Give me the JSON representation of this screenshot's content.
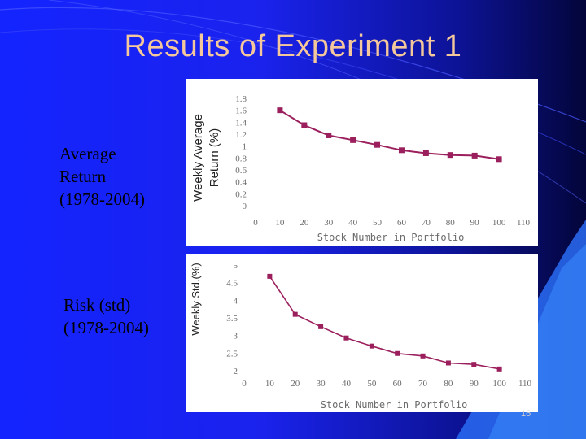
{
  "slide": {
    "title": "Results of Experiment 1",
    "page_number": "16"
  },
  "labels": {
    "return_lines": [
      "Average",
      "Return",
      "(1978-2004)"
    ],
    "risk_lines": [
      "Risk (std)",
      "(1978-2004)"
    ]
  },
  "colors": {
    "series": "#9b1f5c",
    "title": "#f4c89a",
    "background_left": "#1424ff",
    "background_right": "#03053a"
  },
  "chart_data": [
    {
      "type": "line",
      "ylabel_lines": [
        "Weekly Average",
        "Return (%)"
      ],
      "xlabel": "Stock Number in Portfolio",
      "x": [
        10,
        20,
        30,
        40,
        50,
        60,
        70,
        80,
        90,
        100
      ],
      "series": [
        {
          "values": [
            1.6,
            1.35,
            1.18,
            1.1,
            1.02,
            0.93,
            0.88,
            0.85,
            0.84,
            0.78
          ]
        }
      ],
      "xlim": [
        0,
        110
      ],
      "ylim": [
        0,
        1.8
      ],
      "xticks": [
        "0",
        "10",
        "20",
        "30",
        "40",
        "50",
        "60",
        "70",
        "80",
        "90",
        "100",
        "110"
      ],
      "yticks": [
        "0",
        "0.2",
        "0.4",
        "0.6",
        "0.8",
        "1",
        "1.2",
        "1.4",
        "1.6",
        "1.8"
      ],
      "grid": false
    },
    {
      "type": "line",
      "ylabel": "Weekly Std.(%)",
      "xlabel": "Stock Number in Portfolio",
      "x": [
        10,
        20,
        30,
        40,
        50,
        60,
        70,
        80,
        90,
        100
      ],
      "series": [
        {
          "values": [
            4.68,
            3.6,
            3.25,
            2.93,
            2.7,
            2.49,
            2.42,
            2.22,
            2.18,
            2.05
          ]
        }
      ],
      "xlim": [
        0,
        110
      ],
      "ylim": [
        2,
        5
      ],
      "xticks": [
        "0",
        "10",
        "20",
        "30",
        "40",
        "50",
        "60",
        "70",
        "80",
        "90",
        "100",
        "110"
      ],
      "yticks": [
        "2",
        "2.5",
        "3",
        "3.5",
        "4",
        "4.5",
        "5"
      ],
      "grid": false
    }
  ]
}
